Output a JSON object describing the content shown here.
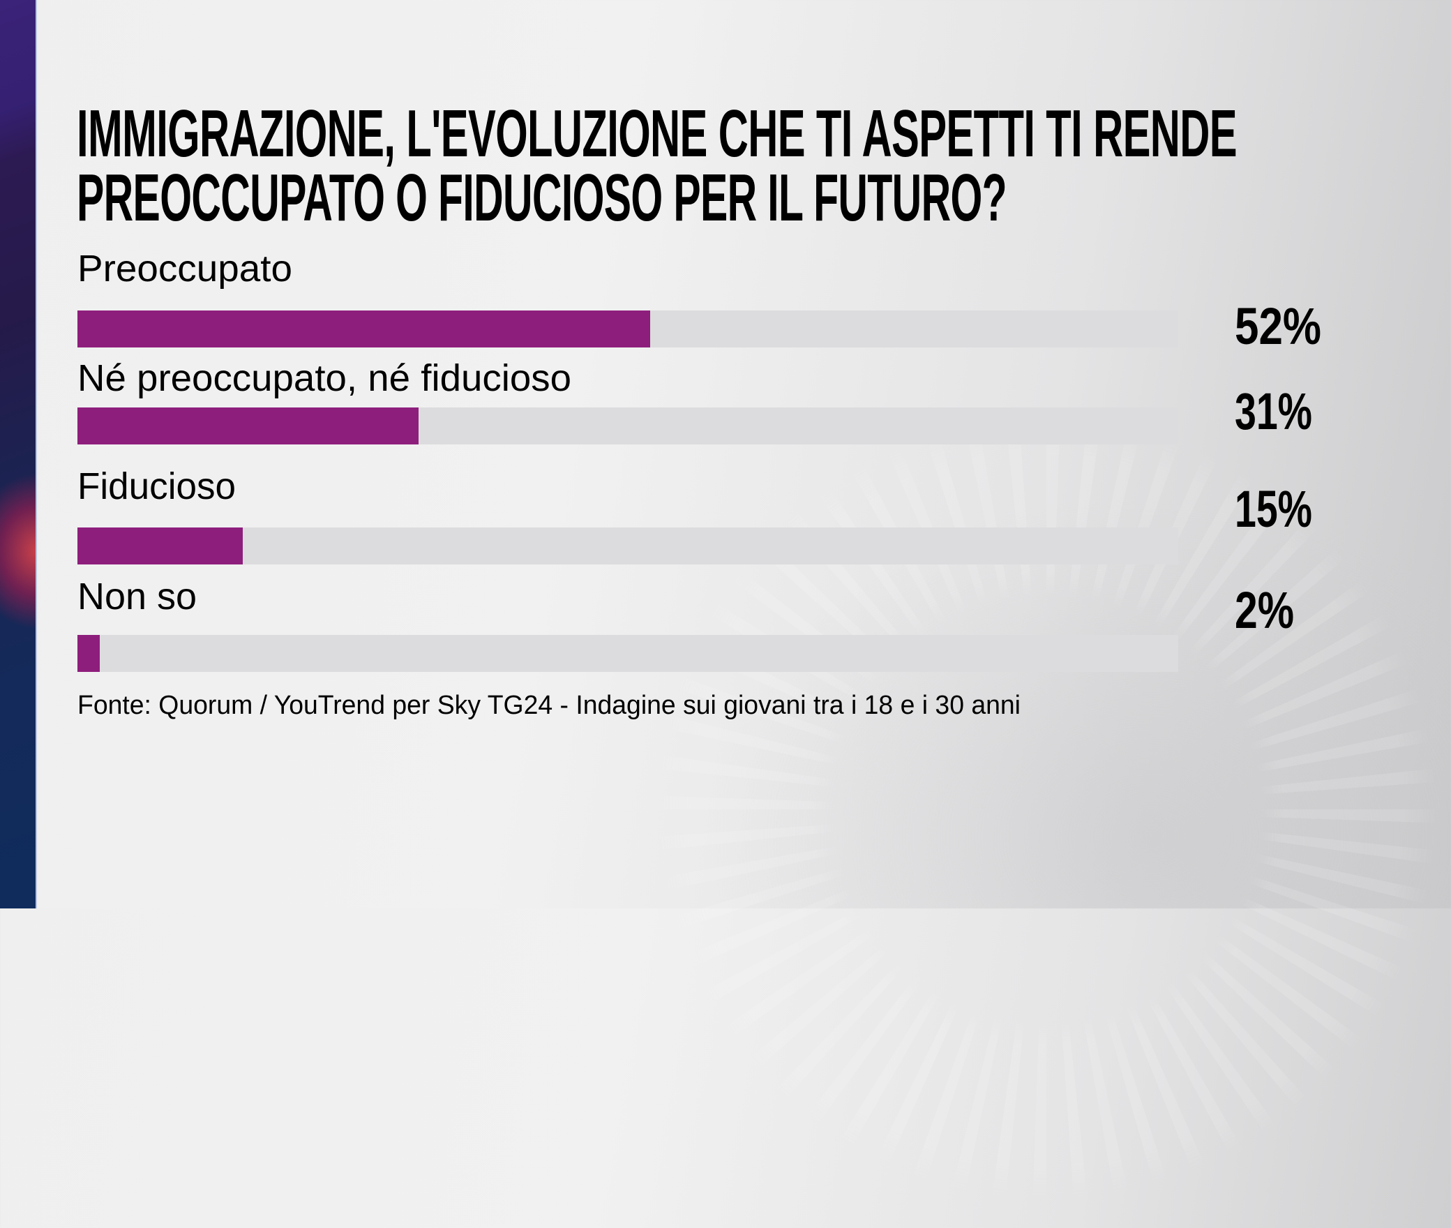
{
  "title": {
    "line1": "IMMIGRAZIONE, L'EVOLUZIONE CHE TI ASPETTI TI RENDE",
    "line2": "PREOCCUPATO O FIDUCIOSO PER IL FUTURO?"
  },
  "options": [
    {
      "label": "Preoccupato",
      "value": 52,
      "display": "52%"
    },
    {
      "label": "Né preoccupato, né fiducioso",
      "value": 31,
      "display": "31%"
    },
    {
      "label": "Fiducioso",
      "value": 15,
      "display": "15%"
    },
    {
      "label": "Non so",
      "value": 2,
      "display": "2%"
    }
  ],
  "footer": "Fonte: Quorum / YouTrend per Sky TG24 - Indagine sui giovani tra i 18 e i 30 anni",
  "colors": {
    "bar_fill": "#8e1e7c",
    "bar_track": "#dcdcde",
    "text": "#000000"
  },
  "chart_data": {
    "type": "bar",
    "orientation": "horizontal",
    "title": "IMMIGRAZIONE, L'EVOLUZIONE CHE TI ASPETTI TI RENDE PREOCCUPATO O FIDUCIOSO PER IL FUTURO?",
    "categories": [
      "Preoccupato",
      "Né preoccupato, né fiducioso",
      "Fiducioso",
      "Non so"
    ],
    "values": [
      52,
      31,
      15,
      2
    ],
    "value_labels": [
      "52%",
      "31%",
      "15%",
      "2%"
    ],
    "unit": "%",
    "xlim": [
      0,
      100
    ],
    "grid": false,
    "legend": null,
    "source": "Fonte: Quorum / YouTrend per Sky TG24 - Indagine sui giovani tra i 18 e i 30 anni"
  }
}
